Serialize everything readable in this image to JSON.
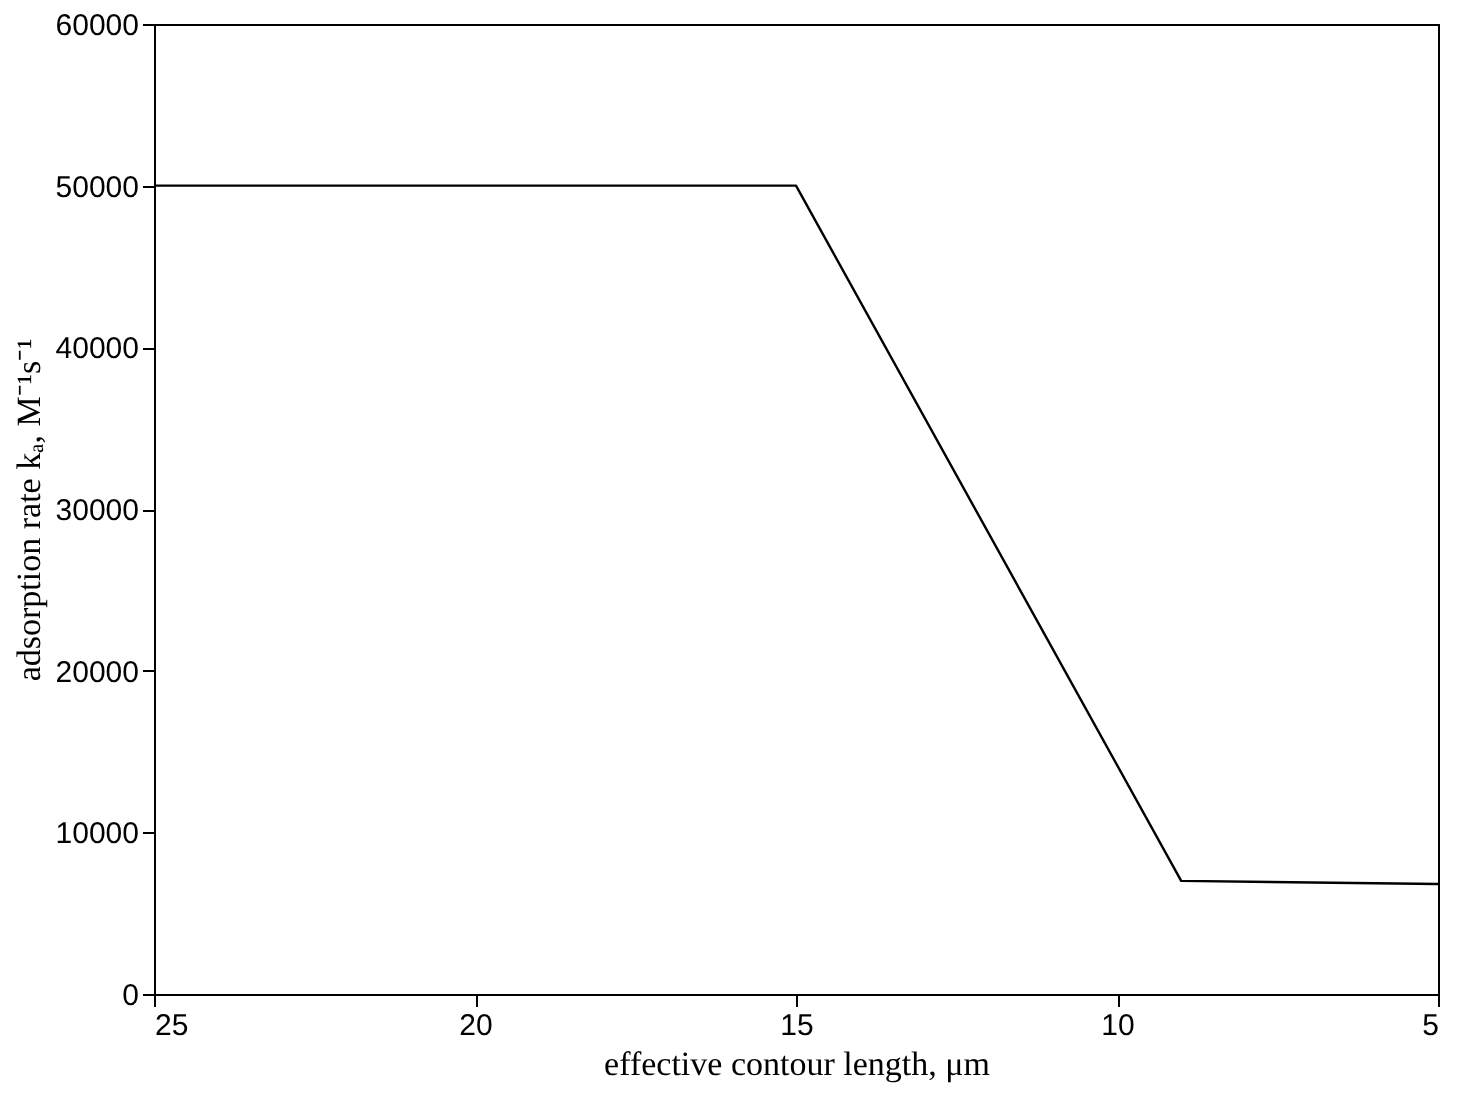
{
  "chart_data": {
    "type": "line",
    "xlabel": "effective contour length, μm",
    "ylabel": "adsorption rate kₐ, M⁻¹s⁻¹",
    "x": [
      25,
      15,
      9,
      5
    ],
    "series": [
      {
        "color": "#000000",
        "values": [
          50000,
          50000,
          7000,
          6800
        ]
      }
    ],
    "xlim": [
      25,
      5
    ],
    "xticks": [
      25,
      20,
      15,
      10,
      5
    ],
    "ylim": [
      0,
      60000
    ],
    "yticks": [
      0,
      10000,
      20000,
      30000,
      40000,
      50000,
      60000
    ],
    "grid": false,
    "marker": "none",
    "line_style": "solid"
  }
}
